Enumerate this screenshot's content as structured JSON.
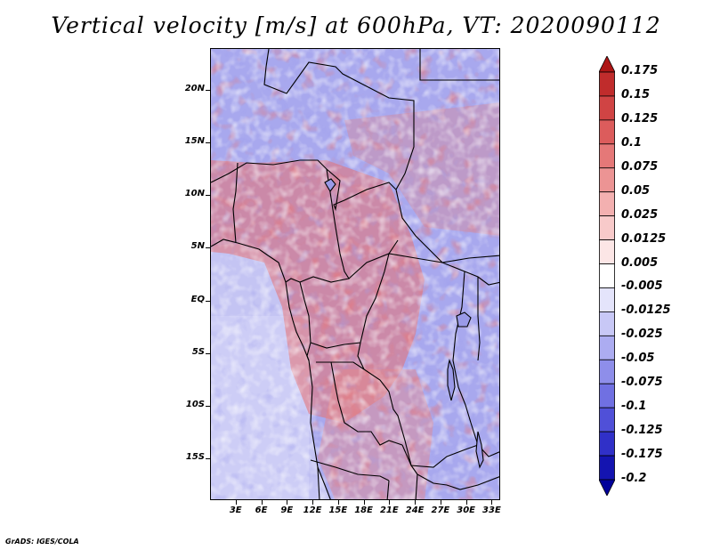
{
  "title": "Vertical velocity [m/s] at 600hPa, VT: 2020090112",
  "map": {
    "lat_labels": [
      "20N",
      "15N",
      "10N",
      "5N",
      "EQ",
      "5S",
      "10S",
      "15S"
    ],
    "lat_values": [
      20,
      15,
      10,
      5,
      0,
      -5,
      -10,
      -15
    ],
    "lon_labels": [
      "3E",
      "6E",
      "9E",
      "12E",
      "15E",
      "18E",
      "21E",
      "24E",
      "27E",
      "30E",
      "33E"
    ],
    "lon_values": [
      3,
      6,
      9,
      12,
      15,
      18,
      21,
      24,
      27,
      30,
      33
    ],
    "lat_range": [
      -19,
      24
    ],
    "lon_range": [
      0,
      34
    ],
    "colors": {
      "coast": "#000000"
    }
  },
  "colorbar": {
    "labels": [
      "0.175",
      "0.15",
      "0.125",
      "0.1",
      "0.075",
      "0.05",
      "0.025",
      "0.0125",
      "0.005",
      "-0.005",
      "-0.0125",
      "-0.025",
      "-0.05",
      "-0.075",
      "-0.1",
      "-0.125",
      "-0.175",
      "-0.2"
    ],
    "colors": [
      "#ad1515",
      "#c02c2c",
      "#d04444",
      "#dc5c5c",
      "#e57878",
      "#ec9494",
      "#f3b0b0",
      "#f8caca",
      "#fce6e6",
      "#ffffff",
      "#e4e4fb",
      "#c8c8f6",
      "#acacf1",
      "#8e8eea",
      "#7070e2",
      "#5050d8",
      "#3030c8",
      "#1414b0",
      "#00009a"
    ]
  },
  "footer": "GrADS: IGES/COLA"
}
